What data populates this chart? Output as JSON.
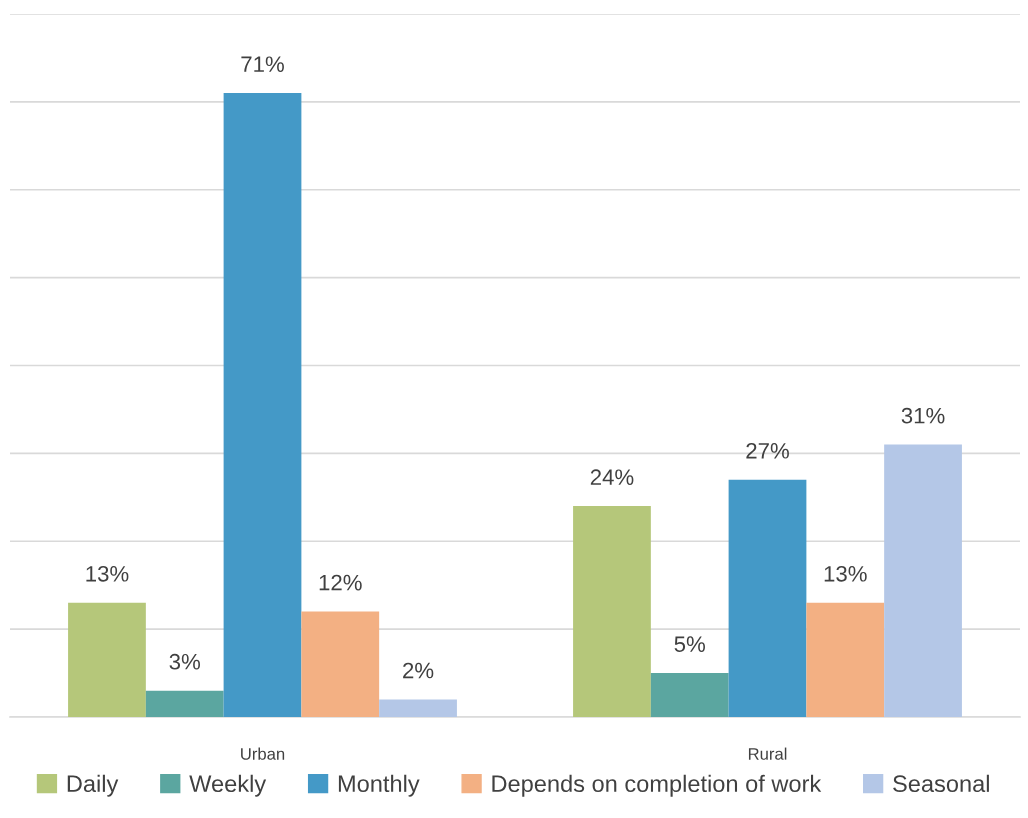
{
  "chart_data": {
    "type": "bar",
    "categories": [
      "Urban",
      "Rural"
    ],
    "series": [
      {
        "name": "Daily",
        "color": "#b5c77a",
        "values": [
          13,
          24
        ],
        "value_labels": [
          "13%",
          "24%"
        ]
      },
      {
        "name": "Weekly",
        "color": "#5ba6a0",
        "values": [
          3,
          5
        ],
        "value_labels": [
          "3%",
          "5%"
        ]
      },
      {
        "name": "Monthly",
        "color": "#4499c7",
        "values": [
          71,
          27
        ],
        "value_labels": [
          "71%",
          "27%"
        ]
      },
      {
        "name": "Depends on completion of work",
        "color": "#f3b083",
        "values": [
          12,
          13
        ],
        "value_labels": [
          "12%",
          "13%"
        ]
      },
      {
        "name": "Seasonal",
        "color": "#b4c7e7",
        "values": [
          2,
          31
        ],
        "value_labels": [
          "2%",
          "31%"
        ]
      }
    ],
    "ylim": [
      0,
      80
    ],
    "yticks": [
      {
        "value": 0,
        "label": null
      },
      {
        "value": 10,
        "label": null
      },
      {
        "value": 20,
        "label": null
      },
      {
        "value": 30,
        "label": null
      },
      {
        "value": 40,
        "label": null
      },
      {
        "value": 50,
        "label": null
      },
      {
        "value": 60,
        "label": null
      },
      {
        "value": 70,
        "label": null
      },
      {
        "value": 80,
        "label": null
      }
    ],
    "tick_labels": "x",
    "grid": "y",
    "legend": "bottom"
  }
}
